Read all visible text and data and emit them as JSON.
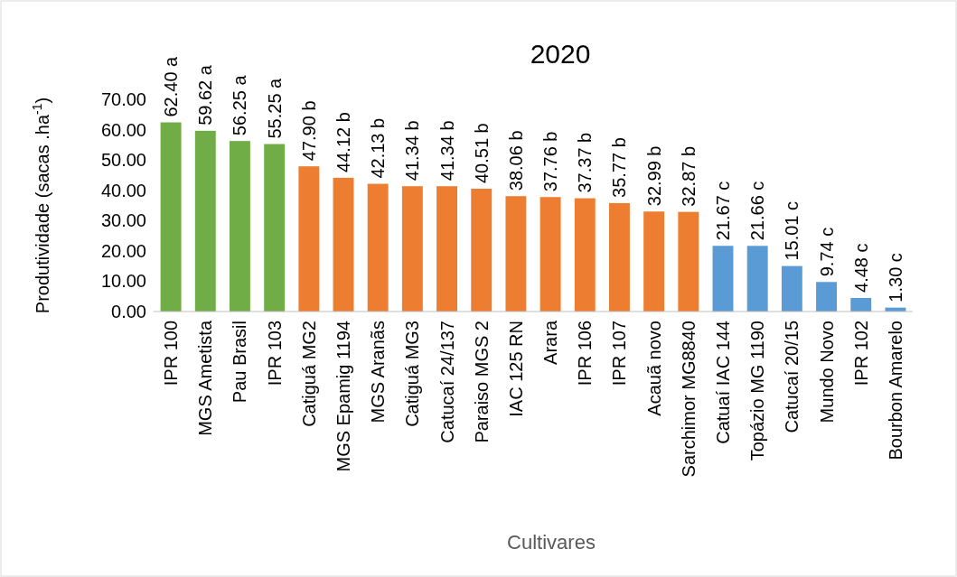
{
  "chart_data": {
    "type": "bar",
    "title": "2020",
    "xlabel": "Cultivares",
    "ylabel": "Produtividade (sacas .ha$^{-1}$)",
    "categories": [
      "IPR 100",
      "MGS Ametista",
      "Pau Brasil",
      "IPR 103",
      "Catiguá MG2",
      "MGS Epamig 1194",
      "MGS Aranãs",
      "Catiguá MG3",
      "Catucaí 24/137",
      "Paraiso MGS 2",
      "IAC 125 RN",
      "Arara",
      "IPR 106",
      "IPR 107",
      "Acauã novo",
      "Sarchimor MG8840",
      "Catuaí IAC 144",
      "Topázio MG 1190",
      "Catucaí 20/15",
      "Mundo Novo",
      "IPR 102",
      "Bourbon Amarelo"
    ],
    "values": [
      62.4,
      59.62,
      56.25,
      55.25,
      47.9,
      44.12,
      42.13,
      41.34,
      41.34,
      40.51,
      38.06,
      37.76,
      37.37,
      35.77,
      32.99,
      32.87,
      21.67,
      21.66,
      15.01,
      9.74,
      4.48,
      1.3
    ],
    "colors": [
      "#70ad47",
      "#70ad47",
      "#70ad47",
      "#70ad47",
      "#ed7d31",
      "#ed7d31",
      "#ed7d31",
      "#ed7d31",
      "#ed7d31",
      "#ed7d31",
      "#ed7d31",
      "#ed7d31",
      "#ed7d31",
      "#ed7d31",
      "#ed7d31",
      "#ed7d31",
      "#5b9bd5",
      "#5b9bd5",
      "#5b9bd5",
      "#5b9bd5",
      "#5b9bd5",
      "#5b9bd5"
    ],
    "value_labels": [
      "62.40 a",
      "59.62 a",
      "56.25 a",
      "55.25 a",
      "47.90 b",
      "44.12 b",
      "42.13 b",
      "41.34 b",
      "41.34 b",
      "40.51 b",
      "38.06 b",
      "37.76 b",
      "37.37 b",
      "35.77 b",
      "32.99 b",
      "32.87 b",
      "21.67 c",
      "21.66 c",
      "15.01 c",
      "9.74 c",
      "4.48 c",
      "1.30 c"
    ],
    "ylim": [
      0,
      70
    ],
    "yticks": [
      {
        "value": 0,
        "label": "0.00"
      },
      {
        "value": 10,
        "label": "10.00"
      },
      {
        "value": 20,
        "label": "20.00"
      },
      {
        "value": 30,
        "label": "30.00"
      },
      {
        "value": 40,
        "label": "40.00"
      },
      {
        "value": 50,
        "label": "50.00"
      },
      {
        "value": 60,
        "label": "60.00"
      },
      {
        "value": 70,
        "label": "70.00"
      }
    ],
    "grid": false
  }
}
